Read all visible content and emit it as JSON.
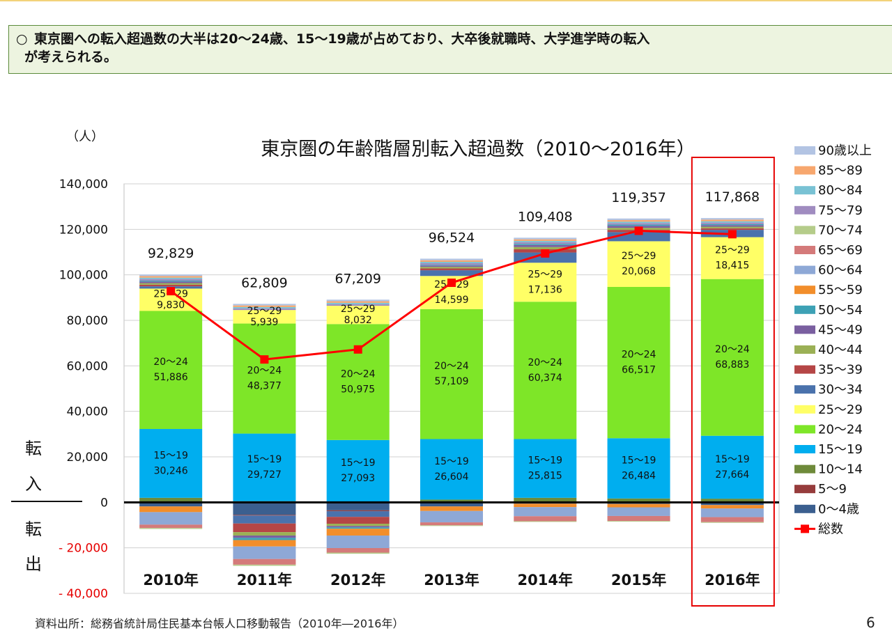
{
  "summary": {
    "bullet": "○",
    "line1": "東京圏への転入超過数の大半は20～24歳、15～19歳が占めており、大卒後就職時、大学進学時の転入",
    "line2": "が考えられる。"
  },
  "source": "資料出所：総務省統計局住民基本台帳人口移動報告（2010年―2016年）",
  "page_number": "6",
  "chart_data": {
    "type": "bar",
    "stacked": true,
    "title": "東京圏の年齢階層別転入超過数（2010～2016年）",
    "unit_label": "（人）",
    "side_label_positive": [
      "転",
      "入"
    ],
    "side_label_negative": [
      "転",
      "出"
    ],
    "categories": [
      "2010年",
      "2011年",
      "2012年",
      "2013年",
      "2014年",
      "2015年",
      "2016年"
    ],
    "ylim": [
      -40000,
      140000
    ],
    "yticks": [
      140000,
      120000,
      100000,
      80000,
      60000,
      40000,
      20000,
      0,
      -20000,
      -40000
    ],
    "ytick_labels": [
      "140,000",
      "120,000",
      "100,000",
      "80,000",
      "60,000",
      "40,000",
      "20,000",
      "0",
      "- 20,000",
      "- 40,000"
    ],
    "grid": true,
    "legend_position": "right",
    "highlight_category": "2016年",
    "highlight_color": "#e60000",
    "series": [
      {
        "name": "0～4歳",
        "color": "#3b5f8f",
        "values": [
          -1800,
          -5500,
          -3500,
          -1800,
          -600,
          -700,
          -1200
        ]
      },
      {
        "name": "5～9",
        "color": "#963c3c",
        "values": [
          200,
          -300,
          -400,
          200,
          200,
          200,
          200
        ]
      },
      {
        "name": "10～14",
        "color": "#6e8a3a",
        "values": [
          1800,
          500,
          300,
          1000,
          1800,
          1500,
          1400
        ]
      },
      {
        "name": "15～19",
        "color": "#00aeef",
        "values": [
          30246,
          29727,
          27093,
          26604,
          25815,
          26484,
          27664
        ]
      },
      {
        "name": "20～24",
        "color": "#7ee628",
        "values": [
          51886,
          48377,
          50975,
          57109,
          60374,
          66517,
          68883
        ]
      },
      {
        "name": "25～29",
        "color": "#ffff66",
        "values": [
          9830,
          5939,
          8032,
          14599,
          17136,
          20068,
          18415
        ]
      },
      {
        "name": "30～34",
        "color": "#4a72ac",
        "values": [
          1000,
          -3500,
          -2500,
          2500,
          4500,
          4000,
          3200
        ]
      },
      {
        "name": "35～39",
        "color": "#b54646",
        "values": [
          700,
          -3800,
          -3000,
          800,
          1400,
          1000,
          700
        ]
      },
      {
        "name": "40～44",
        "color": "#9bb055",
        "values": [
          700,
          -1500,
          -1000,
          700,
          1000,
          900,
          700
        ]
      },
      {
        "name": "45～49",
        "color": "#7a5fa0",
        "values": [
          700,
          -1000,
          -600,
          600,
          900,
          900,
          700
        ]
      },
      {
        "name": "50～54",
        "color": "#3da1b5",
        "values": [
          400,
          -1000,
          -600,
          300,
          500,
          500,
          400
        ]
      },
      {
        "name": "55～59",
        "color": "#f28e2b",
        "values": [
          -2500,
          -2800,
          -3000,
          -2000,
          -1500,
          -1500,
          -1500
        ]
      },
      {
        "name": "60～64",
        "color": "#8ea8d6",
        "values": [
          -5500,
          -5500,
          -5500,
          -5000,
          -4000,
          -3800,
          -3800
        ]
      },
      {
        "name": "65～69",
        "color": "#d47a7a",
        "values": [
          -1500,
          -2500,
          -2000,
          -1300,
          -2200,
          -2200,
          -2200
        ]
      },
      {
        "name": "70～74",
        "color": "#b5cc8a",
        "values": [
          -400,
          -500,
          -500,
          -300,
          -300,
          -300,
          -300
        ]
      },
      {
        "name": "75～79",
        "color": "#a08cc0",
        "values": [
          700,
          700,
          700,
          700,
          700,
          700,
          700
        ]
      },
      {
        "name": "80～84",
        "color": "#79c2d4",
        "values": [
          600,
          600,
          600,
          600,
          600,
          600,
          600
        ]
      },
      {
        "name": "85～89",
        "color": "#f7a76e",
        "values": [
          700,
          700,
          700,
          700,
          700,
          700,
          700
        ]
      },
      {
        "name": "90歳以上",
        "color": "#b3c4e3",
        "values": [
          700,
          700,
          700,
          700,
          700,
          700,
          700
        ]
      }
    ],
    "total": {
      "name": "総数",
      "color": "#ff0000",
      "values": [
        92829,
        62809,
        67209,
        96524,
        109408,
        119357,
        117868
      ],
      "labels": [
        "92,829",
        "62,809",
        "67,209",
        "96,524",
        "109,408",
        "119,357",
        "117,868"
      ]
    },
    "segment_labels": {
      "15～19": [
        "30,246",
        "29,727",
        "27,093",
        "26,604",
        "25,815",
        "26,484",
        "27,664"
      ],
      "20～24": [
        "51,886",
        "48,377",
        "50,975",
        "57,109",
        "60,374",
        "66,517",
        "68,883"
      ],
      "25～29": [
        "9,830",
        "5,939",
        "8,032",
        "14,599",
        "17,136",
        "20,068",
        "18,415"
      ]
    }
  }
}
